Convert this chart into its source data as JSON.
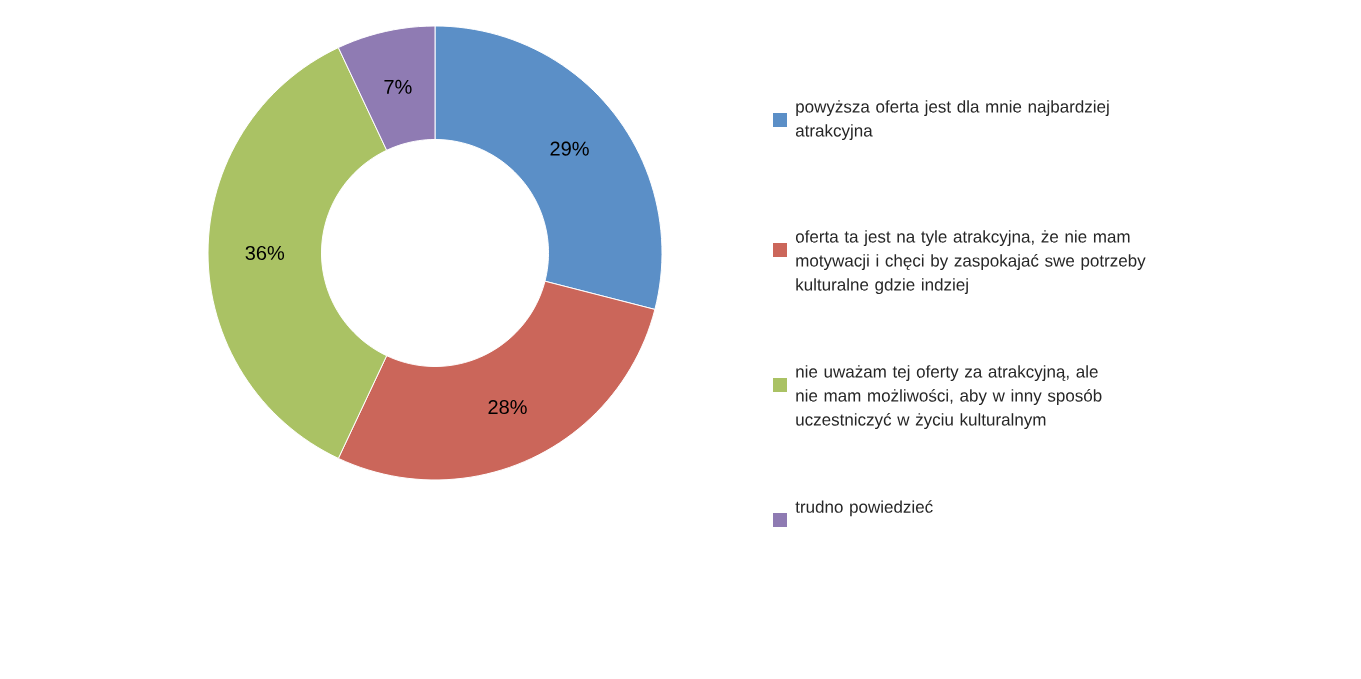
{
  "chart_data": {
    "type": "donut",
    "categories": [
      "powyższa oferta jest dla mnie najbardziej atrakcyjna",
      "oferta ta jest na tyle atrakcyjna, że nie mam motywacji i chęci by zaspokajać swe potrzeby kulturalne gdzie indziej",
      "nie uważam tej oferty za atrakcyjną, ale nie mam możliwości, aby w inny sposób uczestniczyć w życiu kulturalnym",
      "trudno powiedzieć"
    ],
    "values": [
      29,
      28,
      36,
      7
    ],
    "colors": [
      "#5b8fc7",
      "#cb665a",
      "#aac264",
      "#8f7bb3"
    ],
    "value_labels": [
      "29%",
      "28%",
      "36%",
      "7%"
    ],
    "legend": "right"
  }
}
